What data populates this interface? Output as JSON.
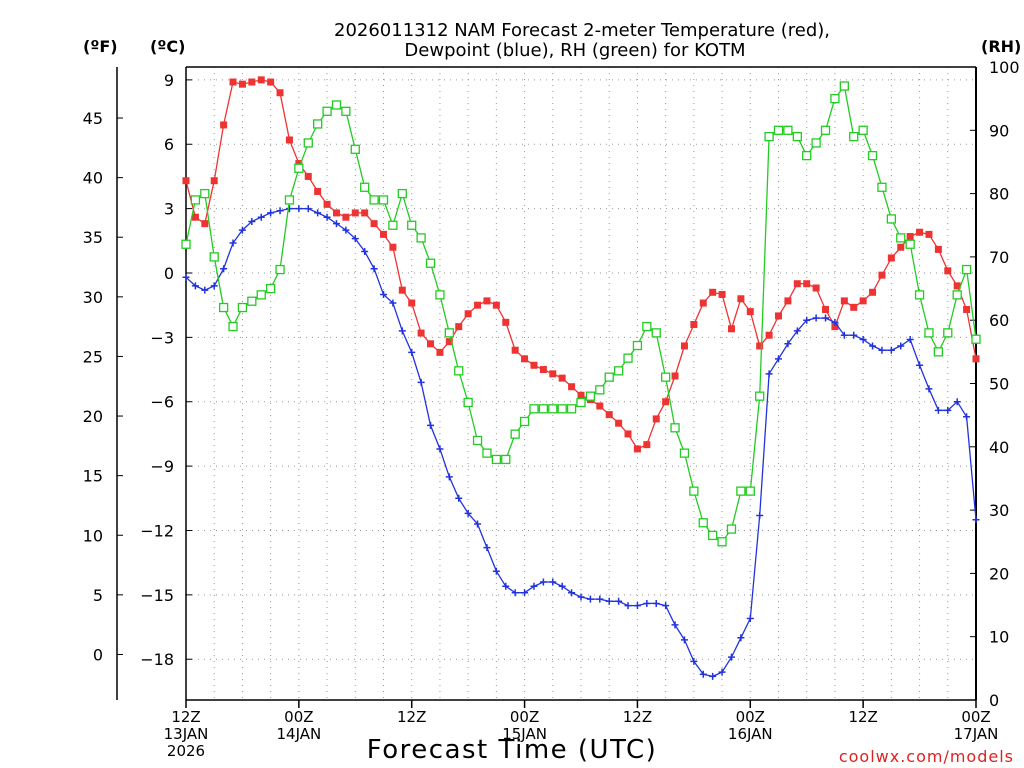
{
  "title_line1": "2026011312 NAM Forecast 2-meter Temperature (red),",
  "title_line2": "Dewpoint (blue), RH (green) for KOTM",
  "unit_f": "(ºF)",
  "unit_c": "(ºC)",
  "unit_rh": "(RH)",
  "xlabel": "Forecast Time (UTC)",
  "credit": "coolwx.com/models",
  "colors": {
    "temp": "#ee3333",
    "dewpoint": "#2233dd",
    "rh": "#22cc22",
    "grid": "#999999"
  },
  "chart_data": {
    "type": "line",
    "x_unit": "forecast hour",
    "xlim": [
      0,
      84
    ],
    "x_ticks": [
      {
        "hour": 0,
        "lines": [
          "12Z",
          "13JAN",
          "2026"
        ]
      },
      {
        "hour": 12,
        "lines": [
          "00Z",
          "14JAN"
        ]
      },
      {
        "hour": 24,
        "lines": [
          "12Z"
        ]
      },
      {
        "hour": 36,
        "lines": [
          "00Z",
          "15JAN"
        ]
      },
      {
        "hour": 48,
        "lines": [
          "12Z"
        ]
      },
      {
        "hour": 60,
        "lines": [
          "00Z",
          "16JAN"
        ]
      },
      {
        "hour": 72,
        "lines": [
          "12Z"
        ]
      },
      {
        "hour": 84,
        "lines": [
          "00Z",
          "17JAN"
        ]
      }
    ],
    "c_axis": {
      "ylim": [
        -19.9,
        9.6
      ],
      "ticks": [
        "9",
        "6",
        "3",
        "0",
        "−3",
        "−6",
        "−9",
        "−12",
        "−15",
        "−18"
      ]
    },
    "f_axis": {
      "ticks": [
        "45",
        "40",
        "35",
        "30",
        "25",
        "20",
        "15",
        "10",
        "5",
        "0"
      ]
    },
    "rh_axis": {
      "ylim": [
        0,
        100
      ],
      "ticks": [
        "100",
        "90",
        "80",
        "70",
        "60",
        "50",
        "40",
        "30",
        "20",
        "10",
        "0"
      ]
    },
    "series": [
      {
        "key": "temp",
        "axis": "c",
        "values": [
          [
            0,
            4.3
          ],
          [
            1,
            2.6
          ],
          [
            2,
            2.3
          ],
          [
            3,
            4.3
          ],
          [
            4,
            6.9
          ],
          [
            5,
            8.9
          ],
          [
            6,
            8.8
          ],
          [
            7,
            8.9
          ],
          [
            8,
            9.0
          ],
          [
            9,
            8.9
          ],
          [
            10,
            8.4
          ],
          [
            11,
            6.2
          ],
          [
            12,
            5.1
          ],
          [
            13,
            4.5
          ],
          [
            14,
            3.8
          ],
          [
            15,
            3.2
          ],
          [
            16,
            2.8
          ],
          [
            17,
            2.6
          ],
          [
            18,
            2.8
          ],
          [
            19,
            2.8
          ],
          [
            20,
            2.3
          ],
          [
            21,
            1.8
          ],
          [
            22,
            1.2
          ],
          [
            23,
            -0.8
          ],
          [
            24,
            -1.4
          ],
          [
            25,
            -2.8
          ],
          [
            26,
            -3.3
          ],
          [
            27,
            -3.7
          ],
          [
            28,
            -3.2
          ],
          [
            29,
            -2.5
          ],
          [
            30,
            -1.9
          ],
          [
            31,
            -1.5
          ],
          [
            32,
            -1.3
          ],
          [
            33,
            -1.5
          ],
          [
            34,
            -2.3
          ],
          [
            35,
            -3.6
          ],
          [
            36,
            -4.0
          ],
          [
            37,
            -4.3
          ],
          [
            38,
            -4.5
          ],
          [
            39,
            -4.7
          ],
          [
            40,
            -4.9
          ],
          [
            41,
            -5.3
          ],
          [
            42,
            -5.7
          ],
          [
            43,
            -5.9
          ],
          [
            44,
            -6.2
          ],
          [
            45,
            -6.6
          ],
          [
            46,
            -7.0
          ],
          [
            47,
            -7.5
          ],
          [
            48,
            -8.2
          ],
          [
            49,
            -8.0
          ],
          [
            50,
            -6.8
          ],
          [
            51,
            -6.0
          ],
          [
            52,
            -4.8
          ],
          [
            53,
            -3.4
          ],
          [
            54,
            -2.4
          ],
          [
            55,
            -1.4
          ],
          [
            56,
            -0.9
          ],
          [
            57,
            -1.0
          ],
          [
            58,
            -2.6
          ],
          [
            59,
            -1.2
          ],
          [
            60,
            -1.8
          ],
          [
            61,
            -3.4
          ],
          [
            62,
            -2.9
          ],
          [
            63,
            -2.0
          ],
          [
            64,
            -1.3
          ],
          [
            65,
            -0.5
          ],
          [
            66,
            -0.5
          ],
          [
            67,
            -0.7
          ],
          [
            68,
            -1.7
          ],
          [
            69,
            -2.5
          ],
          [
            70,
            -1.3
          ],
          [
            71,
            -1.6
          ],
          [
            72,
            -1.3
          ],
          [
            73,
            -0.9
          ],
          [
            74,
            -0.1
          ],
          [
            75,
            0.7
          ],
          [
            76,
            1.2
          ],
          [
            77,
            1.7
          ],
          [
            78,
            1.9
          ],
          [
            79,
            1.8
          ],
          [
            80,
            1.1
          ],
          [
            81,
            0.1
          ],
          [
            82,
            -0.6
          ],
          [
            83,
            -1.7
          ],
          [
            84,
            -4.0
          ]
        ]
      },
      {
        "key": "dewpoint",
        "axis": "c",
        "values": [
          [
            0,
            -0.2
          ],
          [
            1,
            -0.6
          ],
          [
            2,
            -0.8
          ],
          [
            3,
            -0.6
          ],
          [
            4,
            0.2
          ],
          [
            5,
            1.4
          ],
          [
            6,
            2.0
          ],
          [
            7,
            2.4
          ],
          [
            8,
            2.6
          ],
          [
            9,
            2.8
          ],
          [
            10,
            2.9
          ],
          [
            11,
            3.0
          ],
          [
            12,
            3.0
          ],
          [
            13,
            3.0
          ],
          [
            14,
            2.8
          ],
          [
            15,
            2.6
          ],
          [
            16,
            2.3
          ],
          [
            17,
            2.0
          ],
          [
            18,
            1.6
          ],
          [
            19,
            1.0
          ],
          [
            20,
            0.2
          ],
          [
            21,
            -1.0
          ],
          [
            22,
            -1.4
          ],
          [
            23,
            -2.7
          ],
          [
            24,
            -3.7
          ],
          [
            25,
            -5.1
          ],
          [
            26,
            -7.1
          ],
          [
            27,
            -8.2
          ],
          [
            28,
            -9.5
          ],
          [
            29,
            -10.5
          ],
          [
            30,
            -11.2
          ],
          [
            31,
            -11.7
          ],
          [
            32,
            -12.8
          ],
          [
            33,
            -13.9
          ],
          [
            34,
            -14.6
          ],
          [
            35,
            -14.9
          ],
          [
            36,
            -14.9
          ],
          [
            37,
            -14.6
          ],
          [
            38,
            -14.4
          ],
          [
            39,
            -14.4
          ],
          [
            40,
            -14.6
          ],
          [
            41,
            -14.9
          ],
          [
            42,
            -15.1
          ],
          [
            43,
            -15.2
          ],
          [
            44,
            -15.2
          ],
          [
            45,
            -15.3
          ],
          [
            46,
            -15.3
          ],
          [
            47,
            -15.5
          ],
          [
            48,
            -15.5
          ],
          [
            49,
            -15.4
          ],
          [
            50,
            -15.4
          ],
          [
            51,
            -15.5
          ],
          [
            52,
            -16.4
          ],
          [
            53,
            -17.1
          ],
          [
            54,
            -18.1
          ],
          [
            55,
            -18.7
          ],
          [
            56,
            -18.8
          ],
          [
            57,
            -18.6
          ],
          [
            58,
            -17.9
          ],
          [
            59,
            -17.0
          ],
          [
            60,
            -16.1
          ],
          [
            61,
            -11.3
          ],
          [
            62,
            -4.7
          ],
          [
            63,
            -4.0
          ],
          [
            64,
            -3.3
          ],
          [
            65,
            -2.7
          ],
          [
            66,
            -2.2
          ],
          [
            67,
            -2.1
          ],
          [
            68,
            -2.1
          ],
          [
            69,
            -2.3
          ],
          [
            70,
            -2.9
          ],
          [
            71,
            -2.9
          ],
          [
            72,
            -3.1
          ],
          [
            73,
            -3.4
          ],
          [
            74,
            -3.6
          ],
          [
            75,
            -3.6
          ],
          [
            76,
            -3.4
          ],
          [
            77,
            -3.1
          ],
          [
            78,
            -4.3
          ],
          [
            79,
            -5.4
          ],
          [
            80,
            -6.4
          ],
          [
            81,
            -6.4
          ],
          [
            82,
            -6.0
          ],
          [
            83,
            -6.7
          ],
          [
            84,
            -11.5
          ]
        ]
      },
      {
        "key": "rh",
        "axis": "rh",
        "values": [
          [
            0,
            72
          ],
          [
            1,
            79
          ],
          [
            2,
            80
          ],
          [
            3,
            70
          ],
          [
            4,
            62
          ],
          [
            5,
            59
          ],
          [
            6,
            62
          ],
          [
            7,
            63
          ],
          [
            8,
            64
          ],
          [
            9,
            65
          ],
          [
            10,
            68
          ],
          [
            11,
            79
          ],
          [
            12,
            84
          ],
          [
            13,
            88
          ],
          [
            14,
            91
          ],
          [
            15,
            93
          ],
          [
            16,
            94
          ],
          [
            17,
            93
          ],
          [
            18,
            87
          ],
          [
            19,
            81
          ],
          [
            20,
            79
          ],
          [
            21,
            79
          ],
          [
            22,
            75
          ],
          [
            23,
            80
          ],
          [
            24,
            75
          ],
          [
            25,
            73
          ],
          [
            26,
            69
          ],
          [
            27,
            64
          ],
          [
            28,
            58
          ],
          [
            29,
            52
          ],
          [
            30,
            47
          ],
          [
            31,
            41
          ],
          [
            32,
            39
          ],
          [
            33,
            38
          ],
          [
            34,
            38
          ],
          [
            35,
            42
          ],
          [
            36,
            44
          ],
          [
            37,
            46
          ],
          [
            38,
            46
          ],
          [
            39,
            46
          ],
          [
            40,
            46
          ],
          [
            41,
            46
          ],
          [
            42,
            47
          ],
          [
            43,
            48
          ],
          [
            44,
            49
          ],
          [
            45,
            51
          ],
          [
            46,
            52
          ],
          [
            47,
            54
          ],
          [
            48,
            56
          ],
          [
            49,
            59
          ],
          [
            50,
            58
          ],
          [
            51,
            51
          ],
          [
            52,
            43
          ],
          [
            53,
            39
          ],
          [
            54,
            33
          ],
          [
            55,
            28
          ],
          [
            56,
            26
          ],
          [
            57,
            25
          ],
          [
            58,
            27
          ],
          [
            59,
            33
          ],
          [
            60,
            33
          ],
          [
            61,
            48
          ],
          [
            62,
            89
          ],
          [
            63,
            90
          ],
          [
            64,
            90
          ],
          [
            65,
            89
          ],
          [
            66,
            86
          ],
          [
            67,
            88
          ],
          [
            68,
            90
          ],
          [
            69,
            95
          ],
          [
            70,
            97
          ],
          [
            71,
            89
          ],
          [
            72,
            90
          ],
          [
            73,
            86
          ],
          [
            74,
            81
          ],
          [
            75,
            76
          ],
          [
            76,
            73
          ],
          [
            77,
            72
          ],
          [
            78,
            64
          ],
          [
            79,
            58
          ],
          [
            80,
            55
          ],
          [
            81,
            58
          ],
          [
            82,
            64
          ],
          [
            83,
            68
          ],
          [
            84,
            57
          ]
        ]
      }
    ]
  }
}
